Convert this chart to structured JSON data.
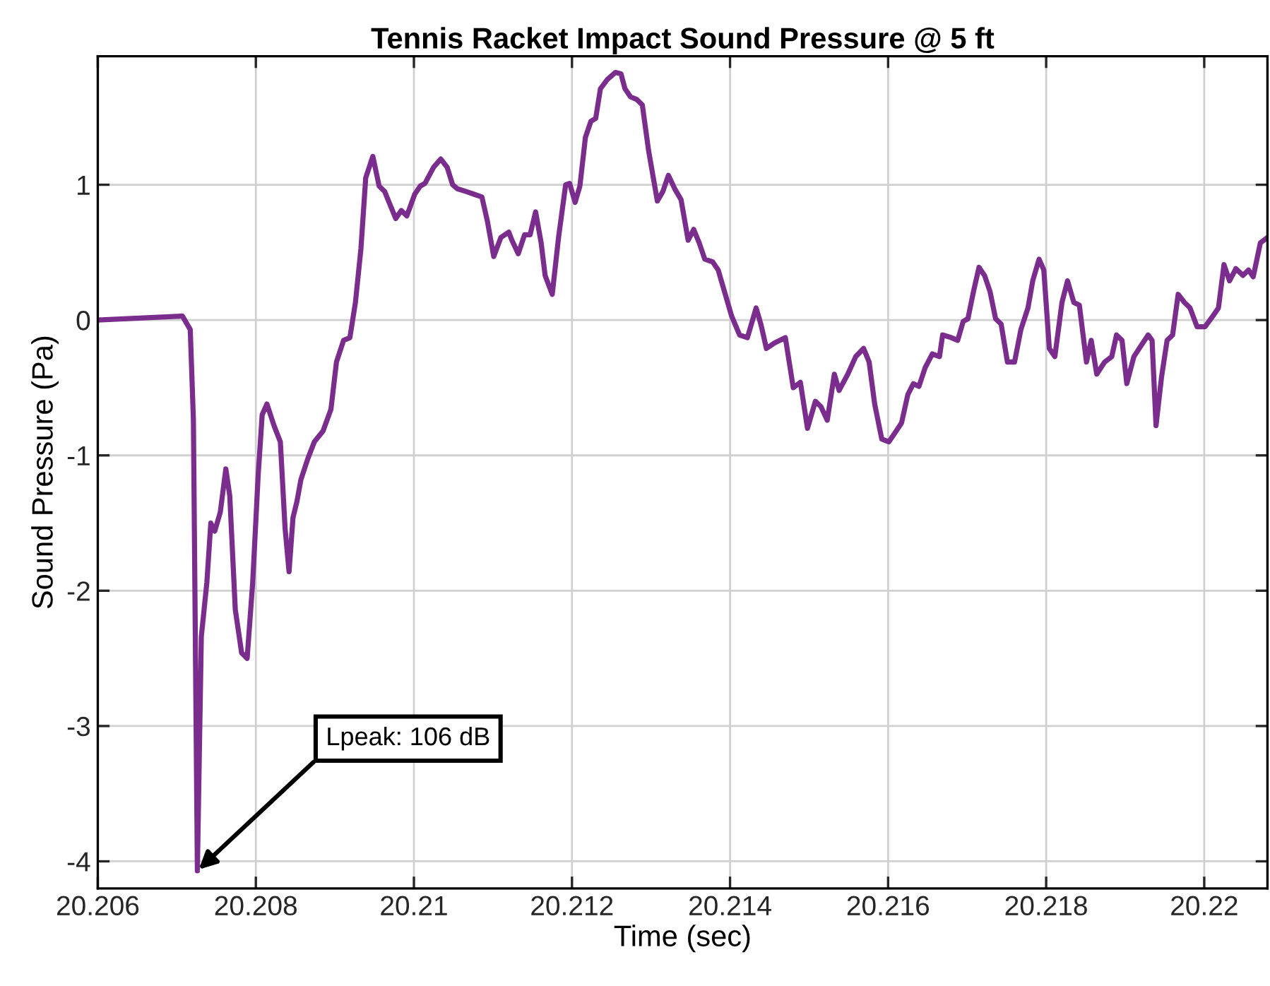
{
  "chart_data": {
    "type": "line",
    "title": "Tennis Racket Impact Sound Pressure @ 5 ft",
    "xlabel": "Time (sec)",
    "ylabel": "Sound Pressure (Pa)",
    "xlim": [
      20.206,
      20.2208
    ],
    "ylim": [
      -4.2,
      1.95
    ],
    "xticks": [
      20.206,
      20.208,
      20.21,
      20.212,
      20.214,
      20.216,
      20.218,
      20.22
    ],
    "yticks": [
      -4,
      -3,
      -2,
      -1,
      0,
      1
    ],
    "grid": true,
    "legend": false,
    "line_style": "solid",
    "marker": "none",
    "annotations": [
      {
        "text": "Lpeak: 106 dB",
        "x": 20.20726,
        "y": -4.07
      }
    ],
    "series": [
      {
        "color": "#7b2d8e",
        "x": [
          20.206,
          20.20707,
          20.20717,
          20.20721,
          20.20726,
          20.20731,
          20.20738,
          20.20743,
          20.20748,
          20.20755,
          20.20762,
          20.20767,
          20.20774,
          20.20782,
          20.20789,
          20.20796,
          20.20803,
          20.20808,
          20.20814,
          20.20823,
          20.20831,
          20.20837,
          20.20842,
          20.20847,
          20.20852,
          20.20857,
          20.20866,
          20.20874,
          20.20885,
          20.20895,
          20.20902,
          20.20911,
          20.20919,
          20.20926,
          20.20933,
          20.20939,
          20.20948,
          20.20956,
          20.20963,
          20.2097,
          20.20977,
          20.20984,
          20.20991,
          20.21001,
          20.21008,
          20.21014,
          20.21025,
          20.21034,
          20.21042,
          20.21049,
          20.21055,
          20.21066,
          20.21076,
          20.21086,
          20.21093,
          20.21101,
          20.2111,
          20.2112,
          20.21124,
          20.21132,
          20.2114,
          20.21147,
          20.21154,
          20.21161,
          20.21166,
          20.21175,
          20.21183,
          20.21192,
          20.21197,
          20.21204,
          20.2121,
          20.21217,
          20.21224,
          20.2123,
          20.21236,
          20.21245,
          20.21255,
          20.21262,
          20.21267,
          20.21274,
          20.21282,
          20.21289,
          20.21297,
          20.21308,
          20.21315,
          20.21322,
          20.2133,
          20.21338,
          20.21347,
          20.21354,
          20.21361,
          20.21368,
          20.21378,
          20.21385,
          20.21393,
          20.21402,
          20.21412,
          20.21422,
          20.21433,
          20.21439,
          20.21446,
          20.21456,
          20.2147,
          20.2148,
          20.21489,
          20.21498,
          20.21508,
          20.21515,
          20.21523,
          20.21532,
          20.21538,
          20.21549,
          20.21559,
          20.21569,
          20.21576,
          20.21583,
          20.21592,
          20.21601,
          20.21608,
          20.21617,
          20.21625,
          20.21632,
          20.21639,
          20.21647,
          20.21656,
          20.21665,
          20.21669,
          20.2168,
          20.21688,
          20.21695,
          20.21701,
          20.21708,
          20.21715,
          20.21722,
          20.21729,
          20.21736,
          20.21743,
          20.21751,
          20.2176,
          20.21768,
          20.21777,
          20.21783,
          20.21791,
          20.21797,
          20.21804,
          20.21811,
          20.2182,
          20.21827,
          20.21835,
          20.21842,
          20.21851,
          20.21857,
          20.21864,
          20.21874,
          20.21883,
          20.21889,
          20.21896,
          20.21902,
          20.21911,
          20.2192,
          20.21929,
          20.21934,
          20.21939,
          20.21946,
          20.21953,
          20.2196,
          20.21967,
          20.21975,
          20.21982,
          20.21991,
          20.22001,
          20.22011,
          20.22018,
          20.22025,
          20.22032,
          20.2204,
          20.22049,
          20.22056,
          20.22062,
          20.22071,
          20.2208
        ],
        "values": [
          0.0,
          0.03,
          -0.07,
          -0.74,
          -4.07,
          -2.34,
          -1.94,
          -1.5,
          -1.56,
          -1.42,
          -1.1,
          -1.3,
          -2.14,
          -2.46,
          -2.5,
          -1.94,
          -1.14,
          -0.7,
          -0.62,
          -0.78,
          -0.9,
          -1.54,
          -1.86,
          -1.46,
          -1.34,
          -1.18,
          -1.02,
          -0.9,
          -0.82,
          -0.66,
          -0.31,
          -0.15,
          -0.13,
          0.13,
          0.53,
          1.05,
          1.21,
          0.99,
          0.95,
          0.85,
          0.75,
          0.81,
          0.77,
          0.93,
          0.99,
          1.01,
          1.13,
          1.19,
          1.13,
          1.0,
          0.97,
          0.95,
          0.93,
          0.91,
          0.73,
          0.47,
          0.61,
          0.65,
          0.59,
          0.49,
          0.63,
          0.63,
          0.8,
          0.57,
          0.33,
          0.19,
          0.61,
          1.0,
          1.01,
          0.87,
          0.99,
          1.35,
          1.47,
          1.49,
          1.71,
          1.78,
          1.83,
          1.82,
          1.71,
          1.65,
          1.63,
          1.59,
          1.25,
          0.88,
          0.95,
          1.07,
          0.97,
          0.89,
          0.59,
          0.67,
          0.57,
          0.45,
          0.43,
          0.37,
          0.21,
          0.03,
          -0.11,
          -0.13,
          0.09,
          -0.03,
          -0.21,
          -0.17,
          -0.13,
          -0.5,
          -0.46,
          -0.8,
          -0.6,
          -0.64,
          -0.74,
          -0.4,
          -0.52,
          -0.4,
          -0.27,
          -0.21,
          -0.31,
          -0.62,
          -0.88,
          -0.9,
          -0.84,
          -0.76,
          -0.55,
          -0.47,
          -0.49,
          -0.35,
          -0.25,
          -0.27,
          -0.11,
          -0.13,
          -0.15,
          -0.01,
          0.01,
          0.21,
          0.39,
          0.33,
          0.21,
          0.01,
          -0.03,
          -0.31,
          -0.31,
          -0.07,
          0.09,
          0.29,
          0.45,
          0.37,
          -0.21,
          -0.27,
          0.13,
          0.29,
          0.13,
          0.11,
          -0.31,
          -0.15,
          -0.4,
          -0.31,
          -0.27,
          -0.11,
          -0.15,
          -0.47,
          -0.27,
          -0.19,
          -0.11,
          -0.15,
          -0.78,
          -0.42,
          -0.15,
          -0.11,
          0.19,
          0.13,
          0.09,
          -0.05,
          -0.05,
          0.03,
          0.09,
          0.41,
          0.29,
          0.38,
          0.33,
          0.37,
          0.32,
          0.57,
          0.61
        ]
      }
    ]
  }
}
